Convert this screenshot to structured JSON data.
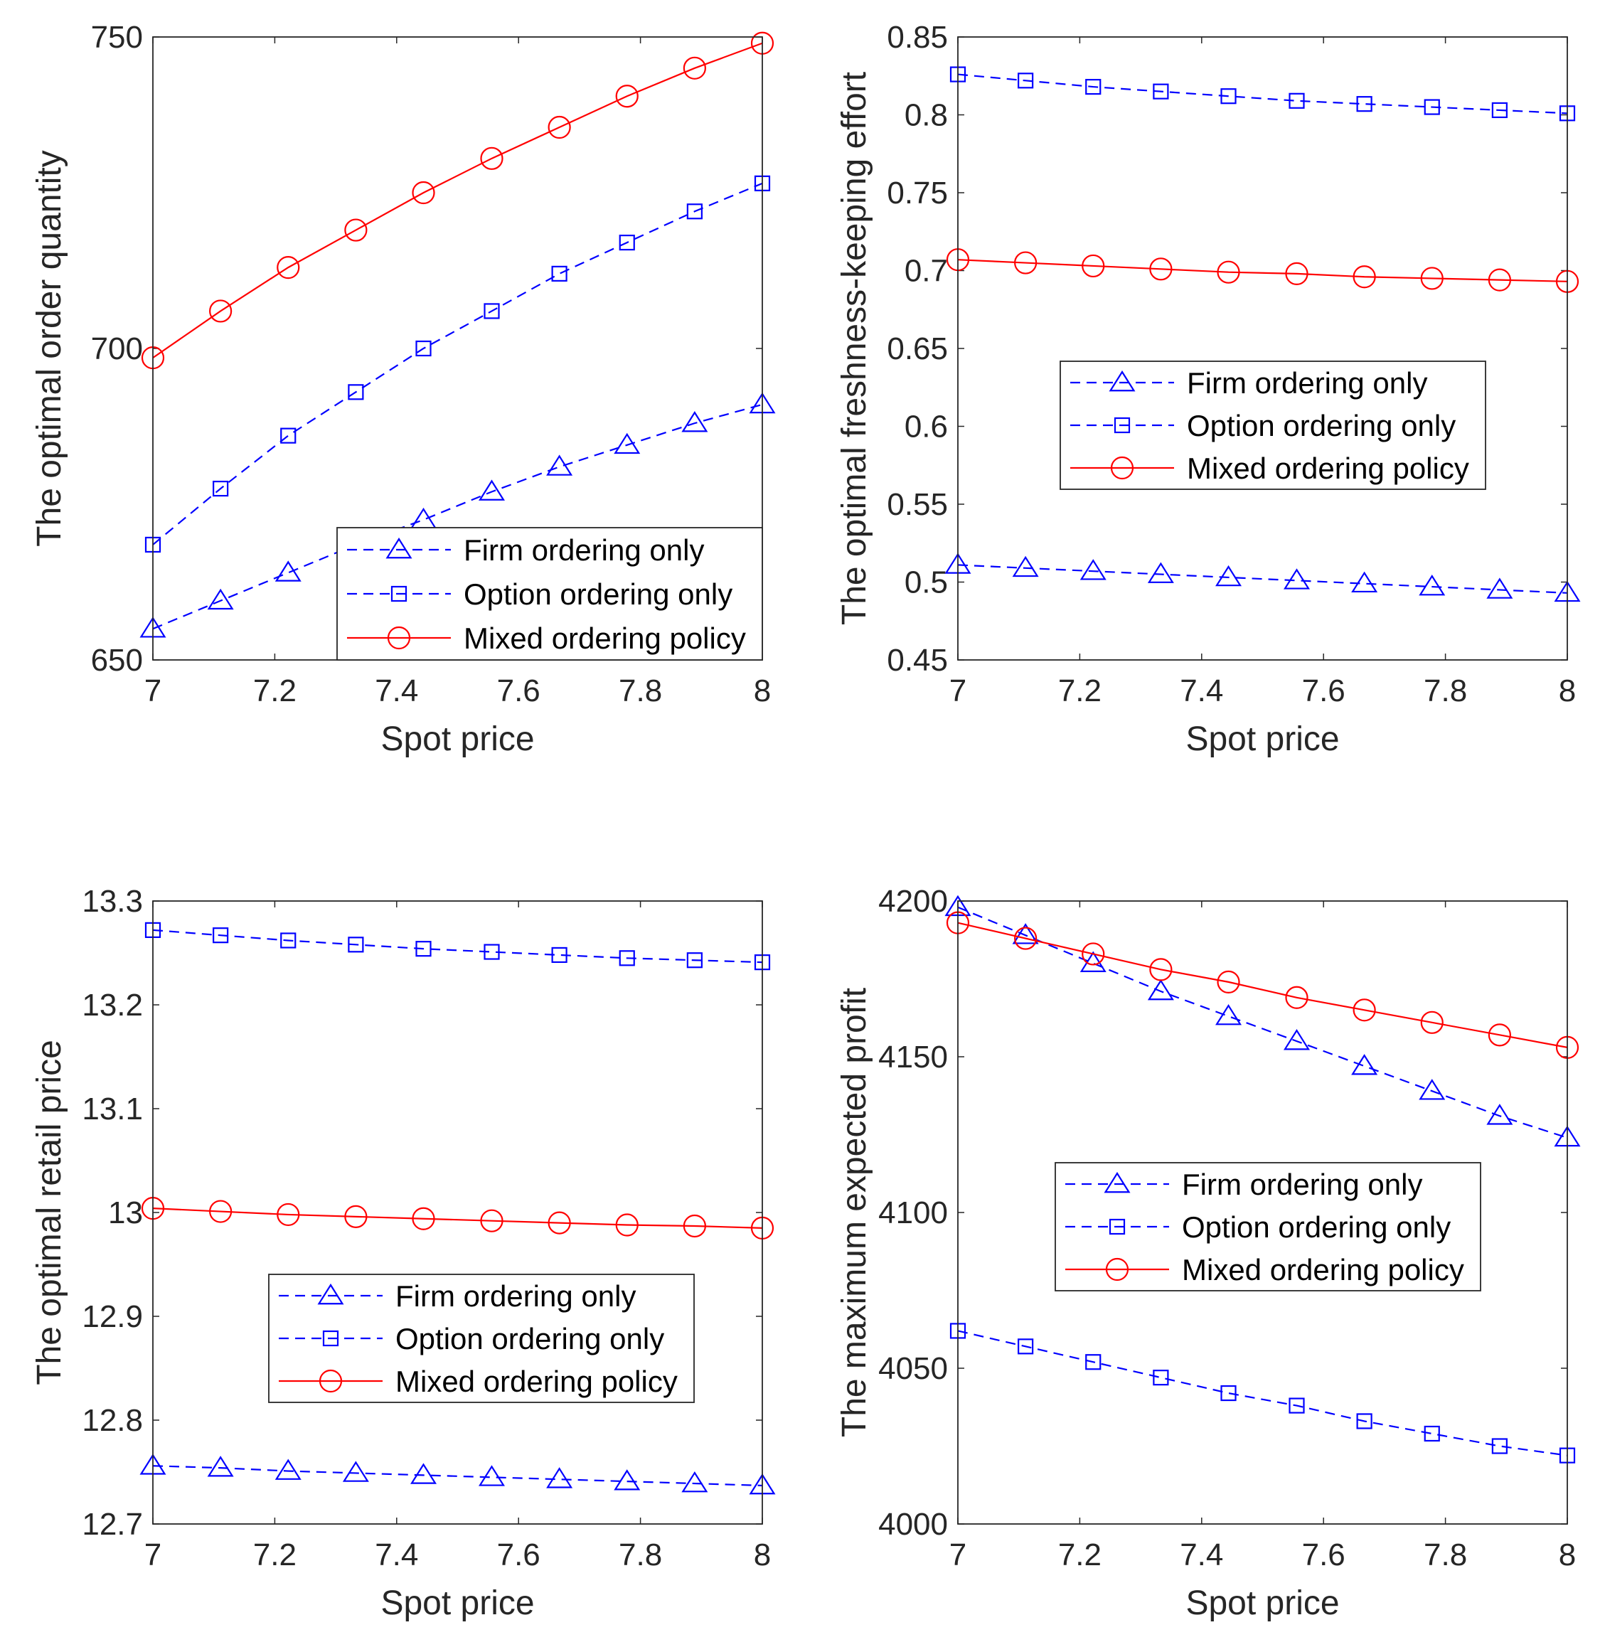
{
  "chart_data": [
    {
      "type": "line",
      "title": "",
      "xlabel": "Spot price",
      "ylabel": "The optimal order quantity",
      "xlim": [
        7,
        8
      ],
      "ylim": [
        650,
        750
      ],
      "xticks": [
        7,
        7.2,
        7.4,
        7.6,
        7.8,
        8
      ],
      "xtick_labels": [
        "7",
        "7.2",
        "7.4",
        "7.6",
        "7.8",
        "8"
      ],
      "yticks": [
        650,
        700,
        750
      ],
      "ytick_labels": [
        "650",
        "700",
        "750"
      ],
      "legend_position": "bottom-right",
      "x": [
        7,
        7.111,
        7.222,
        7.333,
        7.444,
        7.556,
        7.667,
        7.778,
        7.889,
        8
      ],
      "series": [
        {
          "name": "Firm ordering only",
          "values": [
            655,
            659.5,
            664,
            668.5,
            672.5,
            677,
            681,
            684.5,
            688,
            691
          ],
          "color": "#0000ff",
          "dash": true,
          "marker": "triangle"
        },
        {
          "name": "Option ordering only",
          "values": [
            668.5,
            677.5,
            686,
            693,
            700,
            706,
            712,
            717,
            722,
            726.5
          ],
          "color": "#0000ff",
          "dash": true,
          "marker": "square"
        },
        {
          "name": "Mixed ordering policy",
          "values": [
            698.5,
            706,
            713,
            719,
            725,
            730.5,
            735.5,
            740.5,
            745,
            749
          ],
          "color": "#ff0000",
          "dash": false,
          "marker": "circle"
        }
      ]
    },
    {
      "type": "line",
      "title": "",
      "xlabel": "Spot price",
      "ylabel": "The optimal freshness-keeping effort",
      "xlim": [
        7,
        8
      ],
      "ylim": [
        0.45,
        0.85
      ],
      "xticks": [
        7,
        7.2,
        7.4,
        7.6,
        7.8,
        8
      ],
      "xtick_labels": [
        "7",
        "7.2",
        "7.4",
        "7.6",
        "7.8",
        "8"
      ],
      "yticks": [
        0.45,
        0.5,
        0.55,
        0.6,
        0.65,
        0.7,
        0.75,
        0.8,
        0.85
      ],
      "ytick_labels": [
        "0.45",
        "0.5",
        "0.55",
        "0.6",
        "0.65",
        "0.7",
        "0.75",
        "0.8",
        "0.85"
      ],
      "legend_position": "center-right",
      "x": [
        7,
        7.111,
        7.222,
        7.333,
        7.444,
        7.556,
        7.667,
        7.778,
        7.889,
        8
      ],
      "series": [
        {
          "name": "Firm ordering only",
          "values": [
            0.511,
            0.509,
            0.507,
            0.505,
            0.503,
            0.501,
            0.499,
            0.497,
            0.495,
            0.493
          ],
          "color": "#0000ff",
          "dash": true,
          "marker": "triangle"
        },
        {
          "name": "Option ordering only",
          "values": [
            0.826,
            0.822,
            0.818,
            0.815,
            0.812,
            0.809,
            0.807,
            0.805,
            0.803,
            0.801
          ],
          "color": "#0000ff",
          "dash": true,
          "marker": "square"
        },
        {
          "name": "Mixed ordering policy",
          "values": [
            0.707,
            0.705,
            0.703,
            0.701,
            0.699,
            0.698,
            0.696,
            0.695,
            0.694,
            0.693
          ],
          "color": "#ff0000",
          "dash": false,
          "marker": "circle"
        }
      ]
    },
    {
      "type": "line",
      "title": "",
      "xlabel": "Spot price",
      "ylabel": "The optimal retail price",
      "xlim": [
        7,
        8
      ],
      "ylim": [
        12.7,
        13.3
      ],
      "xticks": [
        7,
        7.2,
        7.4,
        7.6,
        7.8,
        8
      ],
      "xtick_labels": [
        "7",
        "7.2",
        "7.4",
        "7.6",
        "7.8",
        "8"
      ],
      "yticks": [
        12.7,
        12.8,
        12.9,
        13,
        13.1,
        13.2,
        13.3
      ],
      "ytick_labels": [
        "12.7",
        "12.8",
        "12.9",
        "13",
        "13.1",
        "13.2",
        "13.3"
      ],
      "legend_position": "center",
      "x": [
        7,
        7.111,
        7.222,
        7.333,
        7.444,
        7.556,
        7.667,
        7.778,
        7.889,
        8
      ],
      "series": [
        {
          "name": "Firm ordering only",
          "values": [
            12.756,
            12.754,
            12.751,
            12.749,
            12.747,
            12.745,
            12.743,
            12.741,
            12.739,
            12.737
          ],
          "color": "#0000ff",
          "dash": true,
          "marker": "triangle"
        },
        {
          "name": "Option ordering only",
          "values": [
            13.272,
            13.267,
            13.262,
            13.258,
            13.254,
            13.251,
            13.248,
            13.245,
            13.243,
            13.241
          ],
          "color": "#0000ff",
          "dash": true,
          "marker": "square"
        },
        {
          "name": "Mixed ordering policy",
          "values": [
            13.004,
            13.001,
            12.998,
            12.996,
            12.994,
            12.992,
            12.99,
            12.988,
            12.987,
            12.985
          ],
          "color": "#ff0000",
          "dash": false,
          "marker": "circle"
        }
      ]
    },
    {
      "type": "line",
      "title": "",
      "xlabel": "Spot price",
      "ylabel": "The maximum expected profit",
      "xlim": [
        7,
        8
      ],
      "ylim": [
        4000,
        4200
      ],
      "xticks": [
        7,
        7.2,
        7.4,
        7.6,
        7.8,
        8
      ],
      "xtick_labels": [
        "7",
        "7.2",
        "7.4",
        "7.6",
        "7.8",
        "8"
      ],
      "yticks": [
        4000,
        4050,
        4100,
        4150,
        4200
      ],
      "ytick_labels": [
        "4000",
        "4050",
        "4100",
        "4150",
        "4200"
      ],
      "legend_position": "center-right",
      "x": [
        7,
        7.111,
        7.222,
        7.333,
        7.444,
        7.556,
        7.667,
        7.778,
        7.889,
        8
      ],
      "series": [
        {
          "name": "Firm ordering only",
          "values": [
            4198,
            4189,
            4180,
            4171,
            4163,
            4155,
            4147,
            4139,
            4131,
            4124
          ],
          "color": "#0000ff",
          "dash": true,
          "marker": "triangle"
        },
        {
          "name": "Option ordering only",
          "values": [
            4062,
            4057,
            4052,
            4047,
            4042,
            4038,
            4033,
            4029,
            4025,
            4022
          ],
          "color": "#0000ff",
          "dash": true,
          "marker": "square"
        },
        {
          "name": "Mixed ordering policy",
          "values": [
            4193,
            4188,
            4183,
            4178,
            4174,
            4169,
            4165,
            4161,
            4157,
            4153
          ],
          "color": "#ff0000",
          "dash": false,
          "marker": "circle"
        }
      ]
    }
  ]
}
